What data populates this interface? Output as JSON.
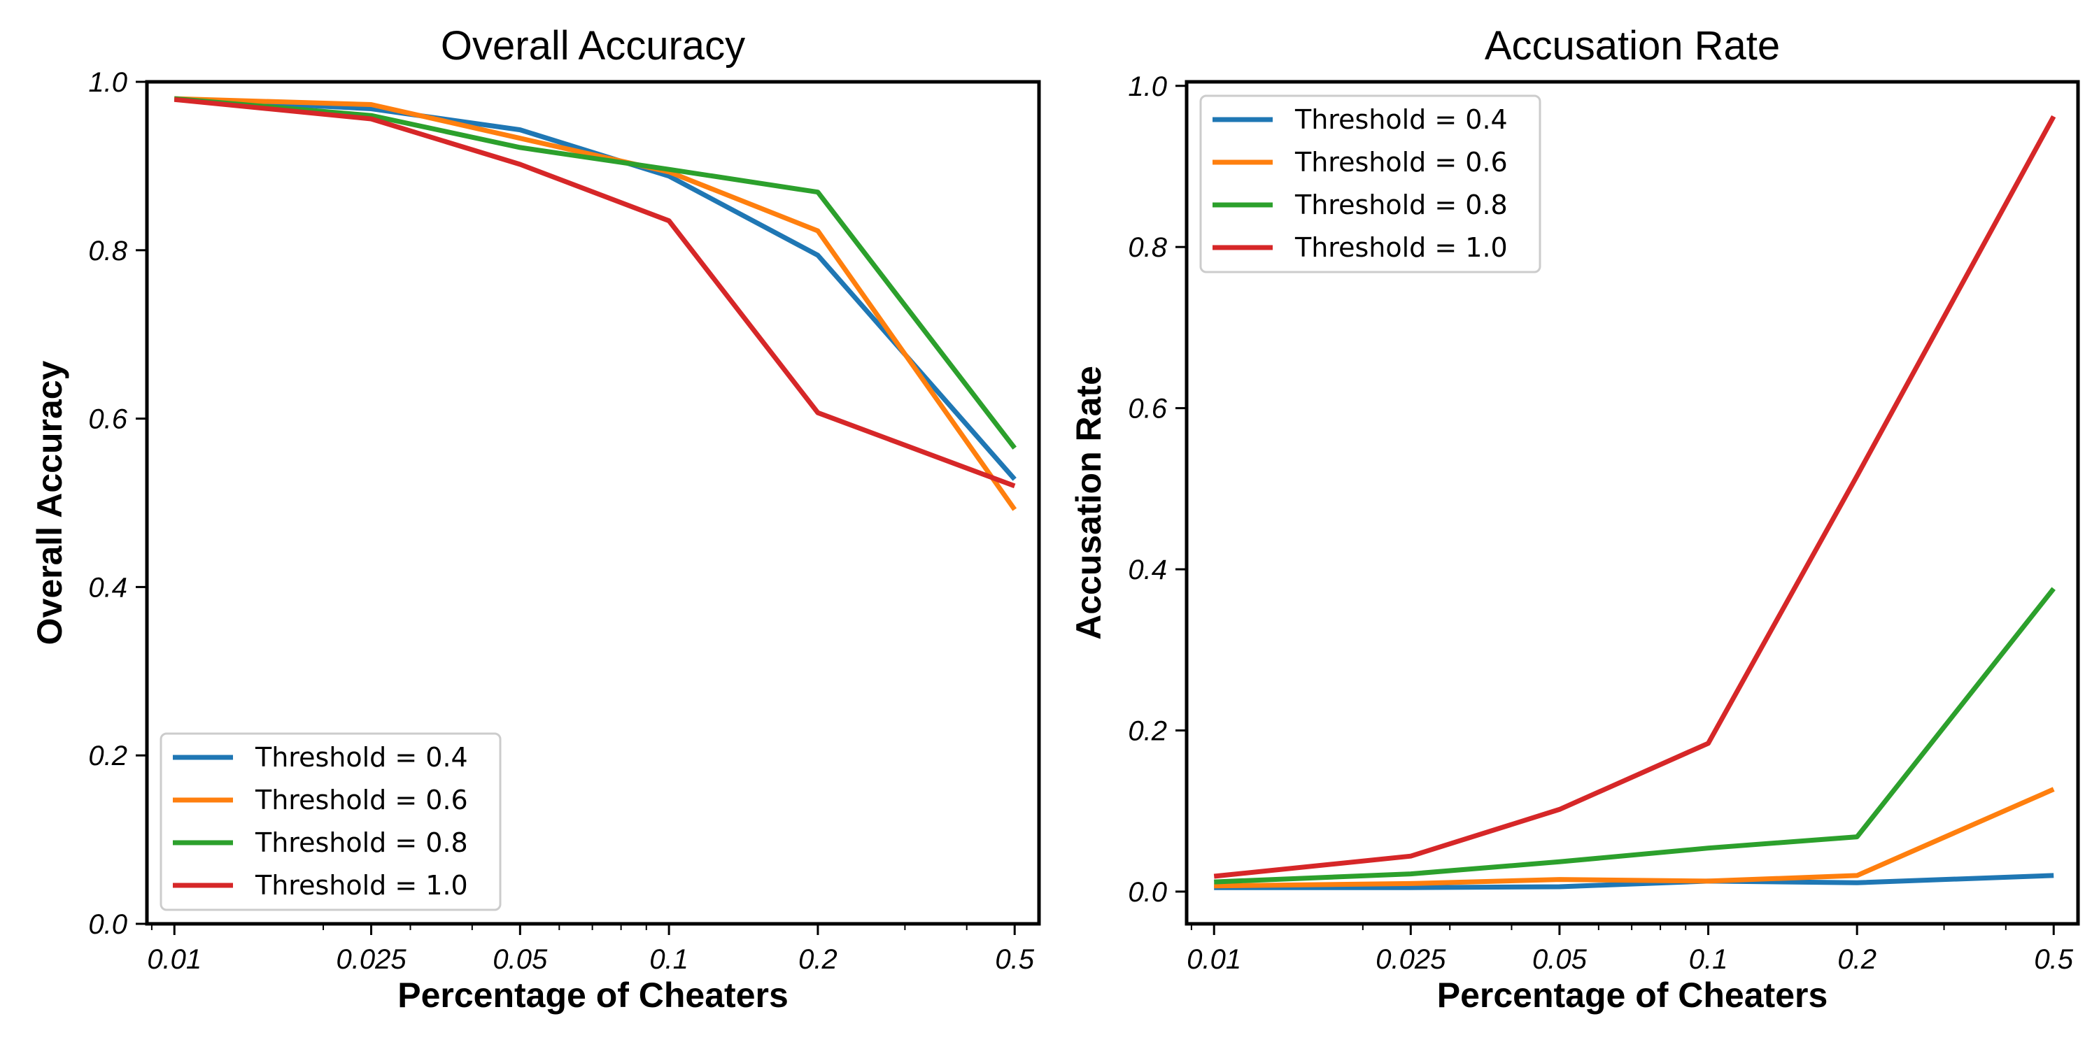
{
  "chart_data": [
    {
      "type": "line",
      "title": "Overall Accuracy",
      "xlabel": "Percentage of Cheaters",
      "ylabel": "Overall Accuracy",
      "xscale": "log",
      "x": [
        0.01,
        0.025,
        0.05,
        0.1,
        0.2,
        0.5
      ],
      "xticks": [
        "0.01",
        "0.025",
        "0.05",
        "0.1",
        "0.2",
        "0.5"
      ],
      "ylim": [
        0.0,
        1.0
      ],
      "yticks": [
        "0.0",
        "0.2",
        "0.4",
        "0.6",
        "0.8",
        "1.0"
      ],
      "grid": false,
      "legend_position": "bottom-left",
      "series": [
        {
          "name": "Threshold = 0.4",
          "color": "#1f77b4",
          "values": [
            0.98,
            0.968,
            0.943,
            0.888,
            0.794,
            0.528
          ]
        },
        {
          "name": "Threshold = 0.6",
          "color": "#ff7f0e",
          "values": [
            0.98,
            0.973,
            0.933,
            0.893,
            0.823,
            0.492
          ]
        },
        {
          "name": "Threshold = 0.8",
          "color": "#2ca02c",
          "values": [
            0.98,
            0.96,
            0.922,
            0.896,
            0.869,
            0.565
          ]
        },
        {
          "name": "Threshold = 1.0",
          "color": "#d62728",
          "values": [
            0.979,
            0.956,
            0.902,
            0.835,
            0.607,
            0.52
          ]
        }
      ]
    },
    {
      "type": "line",
      "title": "Accusation Rate",
      "xlabel": "Percentage of Cheaters",
      "ylabel": "Accusation Rate",
      "xscale": "log",
      "x": [
        0.01,
        0.025,
        0.05,
        0.1,
        0.2,
        0.5
      ],
      "xticks": [
        "0.01",
        "0.025",
        "0.05",
        "0.1",
        "0.2",
        "0.5"
      ],
      "ylim": [
        -0.04,
        1.005
      ],
      "yticks": [
        "0.0",
        "0.2",
        "0.4",
        "0.6",
        "0.8",
        "1.0"
      ],
      "grid": false,
      "legend_position": "top-left",
      "series": [
        {
          "name": "Threshold = 0.4",
          "color": "#1f77b4",
          "values": [
            0.005,
            0.005,
            0.006,
            0.013,
            0.011,
            0.02
          ]
        },
        {
          "name": "Threshold = 0.6",
          "color": "#ff7f0e",
          "values": [
            0.007,
            0.01,
            0.015,
            0.013,
            0.02,
            0.127
          ]
        },
        {
          "name": "Threshold = 0.8",
          "color": "#2ca02c",
          "values": [
            0.012,
            0.022,
            0.037,
            0.054,
            0.068,
            0.376
          ]
        },
        {
          "name": "Threshold = 1.0",
          "color": "#d62728",
          "values": [
            0.019,
            0.044,
            0.102,
            0.184,
            0.516,
            0.962
          ]
        }
      ]
    }
  ]
}
